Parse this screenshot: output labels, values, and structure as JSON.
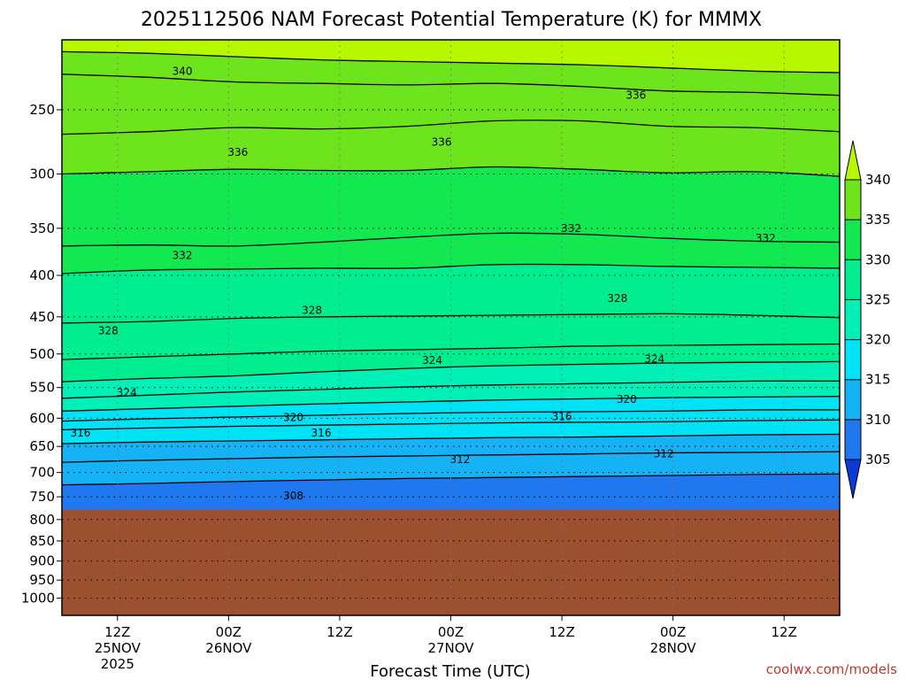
{
  "chart_data": {
    "type": "heatmap",
    "title": "2025112506 NAM Forecast Potential Temperature (K) for MMMX",
    "xlabel": "Forecast Time (UTC)",
    "ylabel": "",
    "y_scale": "log-pressure",
    "y_reversed": true,
    "ylim_hPa": [
      1050,
      205
    ],
    "xlim_hours": [
      0,
      84
    ],
    "y_ticks": [
      {
        "value": 250,
        "label": "250"
      },
      {
        "value": 300,
        "label": "300"
      },
      {
        "value": 350,
        "label": "350"
      },
      {
        "value": 400,
        "label": "400"
      },
      {
        "value": 450,
        "label": "450"
      },
      {
        "value": 500,
        "label": "500"
      },
      {
        "value": 550,
        "label": "550"
      },
      {
        "value": 600,
        "label": "600"
      },
      {
        "value": 650,
        "label": "650"
      },
      {
        "value": 700,
        "label": "700"
      },
      {
        "value": 750,
        "label": "750"
      },
      {
        "value": 800,
        "label": "800"
      },
      {
        "value": 850,
        "label": "850"
      },
      {
        "value": 900,
        "label": "900"
      },
      {
        "value": 950,
        "label": "950"
      },
      {
        "value": 1000,
        "label": "1000"
      }
    ],
    "x_ticks": [
      {
        "hour": 6,
        "lines": [
          "12Z",
          "25NOV",
          "2025"
        ]
      },
      {
        "hour": 18,
        "lines": [
          "00Z",
          "26NOV"
        ]
      },
      {
        "hour": 30,
        "lines": [
          "12Z"
        ]
      },
      {
        "hour": 42,
        "lines": [
          "00Z",
          "27NOV"
        ]
      },
      {
        "hour": 54,
        "lines": [
          "12Z"
        ]
      },
      {
        "hour": 66,
        "lines": [
          "00Z",
          "28NOV"
        ]
      },
      {
        "hour": 78,
        "lines": [
          "12Z"
        ]
      }
    ],
    "grid": true,
    "colorbar": {
      "placement": "right",
      "levels": [
        305,
        310,
        315,
        320,
        325,
        330,
        335,
        340
      ],
      "labels": [
        "305",
        "310",
        "315",
        "320",
        "325",
        "330",
        "335",
        "340"
      ],
      "colors": [
        "#0a3ad8",
        "#1f78f0",
        "#15b2f5",
        "#00e2f5",
        "#00f0b8",
        "#00ee90",
        "#12e850",
        "#6ee41c",
        "#b6f800"
      ],
      "extend": "both"
    },
    "surface_pressure_hPa": 778,
    "surface_color": "#9b5030",
    "contour_interval_K": 2,
    "contours": [
      {
        "value": 340,
        "p": [
          212,
          213,
          215,
          217,
          218,
          219,
          220,
          222,
          224,
          225
        ]
      },
      {
        "value": 338,
        "p": [
          226,
          228,
          231,
          232,
          233,
          232,
          234,
          237,
          238,
          240
        ]
      },
      {
        "value": 336,
        "p": [
          268,
          266,
          263,
          264,
          262,
          258,
          258,
          262,
          263,
          266
        ]
      },
      {
        "value": 334,
        "p": [
          300,
          298,
          296,
          297,
          297,
          294,
          296,
          299,
          298,
          302
        ]
      },
      {
        "value": 332,
        "p": [
          368,
          367,
          368,
          364,
          359,
          355,
          356,
          360,
          363,
          364
        ]
      },
      {
        "value": 330,
        "p": [
          398,
          394,
          393,
          392,
          392,
          388,
          388,
          390,
          391,
          392
        ]
      },
      {
        "value": 328,
        "p": [
          458,
          456,
          452,
          450,
          449,
          448,
          447,
          446,
          448,
          451
        ]
      },
      {
        "value": 326,
        "p": [
          508,
          504,
          500,
          496,
          494,
          492,
          489,
          488,
          487,
          486
        ]
      },
      {
        "value": 324,
        "p": [
          541,
          536,
          532,
          526,
          521,
          517,
          515,
          513,
          512,
          511
        ]
      },
      {
        "value": 322,
        "p": [
          567,
          562,
          557,
          553,
          549,
          546,
          544,
          542,
          540,
          540
        ]
      },
      {
        "value": 320,
        "p": [
          588,
          584,
          580,
          576,
          573,
          570,
          568,
          566,
          565,
          564
        ]
      },
      {
        "value": 318,
        "p": [
          605,
          601,
          598,
          595,
          592,
          590,
          589,
          588,
          586,
          586
        ]
      },
      {
        "value": 316,
        "p": [
          620,
          617,
          614,
          612,
          610,
          608,
          607,
          606,
          604,
          603
        ]
      },
      {
        "value": 314,
        "p": [
          645,
          642,
          640,
          638,
          636,
          634,
          633,
          631,
          629,
          628
        ]
      },
      {
        "value": 312,
        "p": [
          680,
          676,
          673,
          670,
          668,
          666,
          664,
          662,
          661,
          660
        ]
      },
      {
        "value": 310,
        "p": [
          725,
          722,
          718,
          715,
          712,
          710,
          708,
          706,
          704,
          703
        ]
      }
    ],
    "contour_labels": [
      {
        "text": "340",
        "hour": 13,
        "p": 224
      },
      {
        "text": "336",
        "hour": 19,
        "p": 282
      },
      {
        "text": "336",
        "hour": 41,
        "p": 274
      },
      {
        "text": "336",
        "hour": 62,
        "p": 240
      },
      {
        "text": "332",
        "hour": 13,
        "p": 378
      },
      {
        "text": "332",
        "hour": 55,
        "p": 350
      },
      {
        "text": "332",
        "hour": 76,
        "p": 360
      },
      {
        "text": "328",
        "hour": 5,
        "p": 468
      },
      {
        "text": "328",
        "hour": 27,
        "p": 442
      },
      {
        "text": "328",
        "hour": 60,
        "p": 427
      },
      {
        "text": "324",
        "hour": 7,
        "p": 558
      },
      {
        "text": "324",
        "hour": 40,
        "p": 509
      },
      {
        "text": "324",
        "hour": 64,
        "p": 507
      },
      {
        "text": "320",
        "hour": 25,
        "p": 599
      },
      {
        "text": "320",
        "hour": 61,
        "p": 569
      },
      {
        "text": "316",
        "hour": 2,
        "p": 626
      },
      {
        "text": "316",
        "hour": 28,
        "p": 626
      },
      {
        "text": "316",
        "hour": 54,
        "p": 597
      },
      {
        "text": "312",
        "hour": 43,
        "p": 675
      },
      {
        "text": "312",
        "hour": 65,
        "p": 664
      },
      {
        "text": "308",
        "hour": 25,
        "p": 748
      }
    ]
  },
  "credit": "coolwx.com/models"
}
